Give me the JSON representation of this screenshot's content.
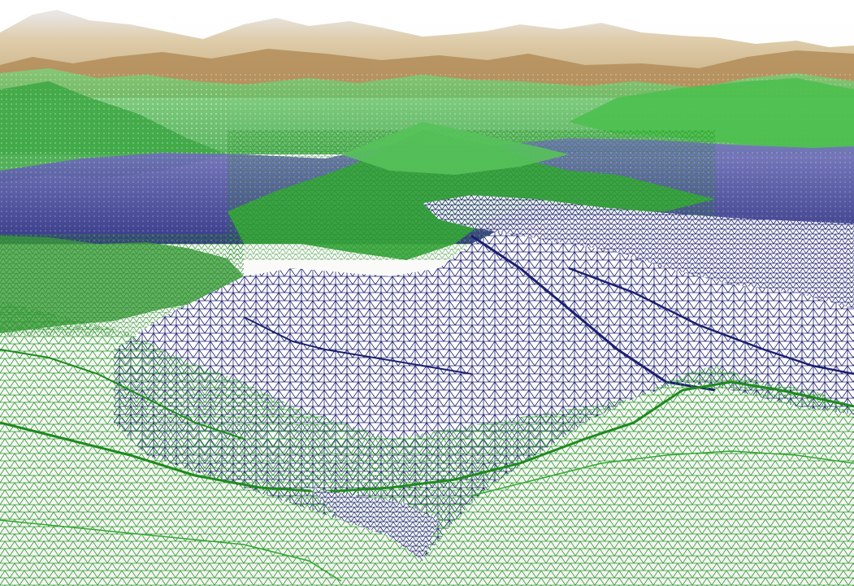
{
  "scene": {
    "subject": "terrain-mesh-render",
    "colors": {
      "sky": "#ffffff",
      "far_peaks": "#c8a873",
      "snow": "#e8e8ec",
      "green_fill": "#5cc85c",
      "blue_mesh": "#1b1f6e",
      "blue_fill": "#6b6fb5",
      "near_wire": "#1e8a1e",
      "mid_wire": "#2fa82f"
    },
    "bands": [
      "sky",
      "far-peaks",
      "green-ridges",
      "blue-plateau",
      "mid-green-ridges",
      "blue-valley-mesh",
      "near-green-wireframe"
    ]
  }
}
